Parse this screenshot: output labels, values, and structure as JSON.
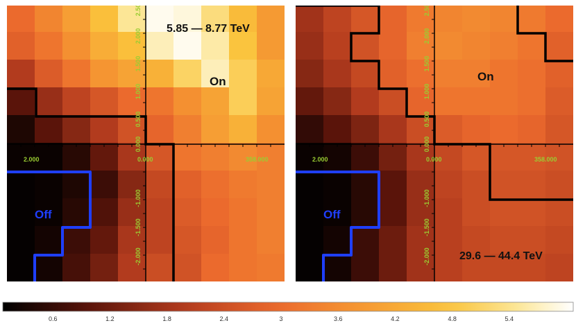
{
  "chart_data": [
    {
      "type": "heatmap",
      "energy_range": "5.85 — 8.77 TeV",
      "on_label": "On",
      "off_label": "Off",
      "x_ticks": [
        "2.000",
        "0.000",
        "358.000"
      ],
      "y_ticks": [
        "2.500",
        "2.000",
        "1.500",
        "1.000",
        "0.500",
        "0.000",
        "-1.000",
        "-1.500",
        "-2.000"
      ],
      "colormap_max": 6.0,
      "grid": [
        [
          2.8,
          3.2,
          3.8,
          4.3,
          4.8,
          5.3,
          5.0,
          4.5,
          4.0,
          3.5
        ],
        [
          2.9,
          3.4,
          3.9,
          4.6,
          5.4,
          5.9,
          5.8,
          5.2,
          4.5,
          3.8
        ],
        [
          2.7,
          3.1,
          3.6,
          4.2,
          4.6,
          5.6,
          5.9,
          5.5,
          4.7,
          3.8
        ],
        [
          1.9,
          2.6,
          3.1,
          3.7,
          4.0,
          4.3,
          5.0,
          5.6,
          4.9,
          4.1
        ],
        [
          0.9,
          1.6,
          2.1,
          2.5,
          2.9,
          3.1,
          3.6,
          4.0,
          4.9,
          4.0
        ],
        [
          0.3,
          0.9,
          1.4,
          1.9,
          2.4,
          2.8,
          3.3,
          3.9,
          4.3,
          3.6
        ],
        [
          0.1,
          0.1,
          0.4,
          1.0,
          1.8,
          2.5,
          3.1,
          3.3,
          3.5,
          3.3
        ],
        [
          0.05,
          0.1,
          0.3,
          0.6,
          1.4,
          2.2,
          2.7,
          3.0,
          3.2,
          3.3
        ],
        [
          0.05,
          0.1,
          0.4,
          0.8,
          1.6,
          2.1,
          2.6,
          2.9,
          3.1,
          3.3
        ],
        [
          0.05,
          0.2,
          0.6,
          1.0,
          1.8,
          2.1,
          2.5,
          2.8,
          3.1,
          3.3
        ],
        [
          0.05,
          0.2,
          0.7,
          1.2,
          1.9,
          2.3,
          2.4,
          2.9,
          3.1,
          3.2
        ]
      ]
    },
    {
      "type": "heatmap",
      "energy_range": "29.6 — 44.4 TeV",
      "on_label": "On",
      "off_label": "Off",
      "x_ticks": [
        "2.000",
        "0.000",
        "358.000"
      ],
      "y_ticks": [
        "2.500",
        "2.000",
        "1.500",
        "1.000",
        "0.500",
        "0.000",
        "-1.000",
        "-1.500",
        "-2.000"
      ],
      "colormap_max": 6.0,
      "grid": [
        [
          1.8,
          2.1,
          2.4,
          2.6,
          2.9,
          3.1,
          3.2,
          3.2,
          3.1,
          2.8
        ],
        [
          1.7,
          2.1,
          2.5,
          2.8,
          3.2,
          3.4,
          3.5,
          3.4,
          3.2,
          2.9
        ],
        [
          1.6,
          2.0,
          2.4,
          2.8,
          3.3,
          3.5,
          3.4,
          3.3,
          3.1,
          2.7
        ],
        [
          1.4,
          1.8,
          2.2,
          2.7,
          3.0,
          3.3,
          3.3,
          3.1,
          3.0,
          2.7
        ],
        [
          1.0,
          1.4,
          1.9,
          2.3,
          2.8,
          3.1,
          3.1,
          3.1,
          3.0,
          2.6
        ],
        [
          0.5,
          0.9,
          1.3,
          1.8,
          2.3,
          2.6,
          2.8,
          2.9,
          2.8,
          2.5
        ],
        [
          0.1,
          0.2,
          0.6,
          1.2,
          1.8,
          2.2,
          2.5,
          2.5,
          2.5,
          2.4
        ],
        [
          0.05,
          0.1,
          0.4,
          0.9,
          1.6,
          2.1,
          2.3,
          2.4,
          2.4,
          2.3
        ],
        [
          0.05,
          0.1,
          0.4,
          0.9,
          1.6,
          2.0,
          2.3,
          2.4,
          2.4,
          2.3
        ],
        [
          0.05,
          0.2,
          0.6,
          1.1,
          1.7,
          2.0,
          2.2,
          2.3,
          2.3,
          2.2
        ],
        [
          0.05,
          0.2,
          0.6,
          1.1,
          1.7,
          2.0,
          2.2,
          2.2,
          2.2,
          2.1
        ]
      ]
    }
  ],
  "colorbar": {
    "ticks": [
      "0.6",
      "1.2",
      "1.8",
      "2.4",
      "3",
      "3.6",
      "4.2",
      "4.8",
      "5.4"
    ],
    "min": 0,
    "max": 6.0
  }
}
